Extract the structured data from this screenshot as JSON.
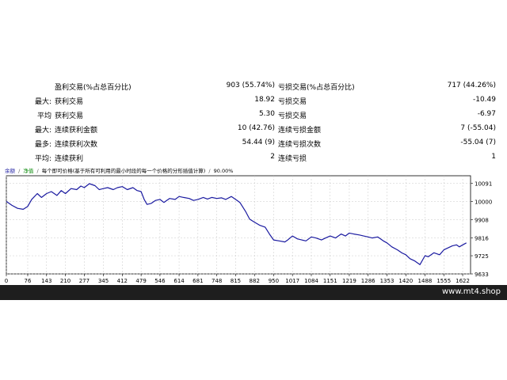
{
  "stats": {
    "rows": [
      {
        "prefix": "",
        "label1": "盈利交易(%占总百分比)",
        "val1": "903 (55.74%)",
        "label2": "亏损交易(%占总百分比)",
        "val2": "717 (44.26%)"
      },
      {
        "prefix": "最大:",
        "label1": "获利交易",
        "val1": "18.92",
        "label2": "亏损交易",
        "val2": "-10.49"
      },
      {
        "prefix": "平均",
        "label1": "获利交易",
        "val1": "5.30",
        "label2": "亏损交易",
        "val2": "-6.97"
      },
      {
        "prefix": "最大:",
        "label1": "连续获利金额",
        "val1": "10 (42.76)",
        "label2": "连续亏损金额",
        "val2": "7 (-55.04)"
      },
      {
        "prefix": "最多:",
        "label1": "连续获利次数",
        "val1": "54.44 (9)",
        "label2": "连续亏损次数",
        "val2": "-55.04 (7)"
      },
      {
        "prefix": "平均:",
        "label1": "连续获利",
        "val1": "2",
        "label2": "连续亏损",
        "val2": "1"
      }
    ]
  },
  "chart": {
    "legend_balance": "余额",
    "legend_equity": "净值",
    "header_note": "每个即可价格(基于所有可利用的最小时段的每一个价格的分形插值计算)",
    "quality": "90.00%",
    "separator": "/"
  },
  "chart_data": {
    "type": "line",
    "x_ticks": [
      0,
      76,
      143,
      210,
      277,
      345,
      412,
      479,
      546,
      614,
      681,
      748,
      815,
      882,
      950,
      1017,
      1084,
      1151,
      1219,
      1286,
      1353,
      1420,
      1488,
      1555,
      1622
    ],
    "y_ticks": [
      9633,
      9725,
      9816,
      9908,
      10000,
      10091
    ],
    "xlim": [
      0,
      1650
    ],
    "ylim": [
      9633,
      10130
    ],
    "series": [
      {
        "color": "#1a1aa0",
        "x": [
          0,
          20,
          40,
          60,
          76,
          90,
          110,
          125,
          143,
          160,
          180,
          195,
          210,
          230,
          250,
          265,
          277,
          295,
          315,
          330,
          345,
          360,
          380,
          395,
          412,
          430,
          450,
          465,
          479,
          490,
          500,
          515,
          530,
          546,
          560,
          580,
          600,
          614,
          630,
          650,
          665,
          681,
          700,
          715,
          730,
          748,
          765,
          780,
          800,
          815,
          830,
          850,
          865,
          882,
          900,
          920,
          935,
          950,
          970,
          990,
          1000,
          1017,
          1035,
          1050,
          1065,
          1084,
          1100,
          1120,
          1135,
          1151,
          1170,
          1190,
          1205,
          1219,
          1235,
          1255,
          1270,
          1286,
          1300,
          1320,
          1340,
          1353,
          1370,
          1390,
          1405,
          1420,
          1435,
          1450,
          1470,
          1488,
          1500,
          1520,
          1540,
          1555,
          1570,
          1585,
          1600,
          1610,
          1622,
          1635
        ],
        "y": [
          10000,
          9980,
          9965,
          9960,
          9975,
          10010,
          10040,
          10020,
          10040,
          10050,
          10030,
          10055,
          10040,
          10065,
          10060,
          10078,
          10070,
          10090,
          10080,
          10060,
          10065,
          10070,
          10060,
          10070,
          10075,
          10060,
          10070,
          10055,
          10050,
          10010,
          9985,
          9990,
          10005,
          10010,
          9995,
          10015,
          10010,
          10025,
          10020,
          10015,
          10005,
          10010,
          10020,
          10012,
          10020,
          10015,
          10018,
          10010,
          10025,
          10010,
          9995,
          9950,
          9910,
          9895,
          9880,
          9870,
          9835,
          9805,
          9800,
          9795,
          9805,
          9825,
          9810,
          9805,
          9800,
          9820,
          9815,
          9805,
          9815,
          9825,
          9815,
          9835,
          9825,
          9840,
          9835,
          9830,
          9825,
          9820,
          9815,
          9820,
          9800,
          9790,
          9770,
          9755,
          9740,
          9730,
          9710,
          9700,
          9680,
          9725,
          9720,
          9740,
          9730,
          9755,
          9765,
          9775,
          9780,
          9770,
          9780,
          9790
        ]
      }
    ]
  }
}
